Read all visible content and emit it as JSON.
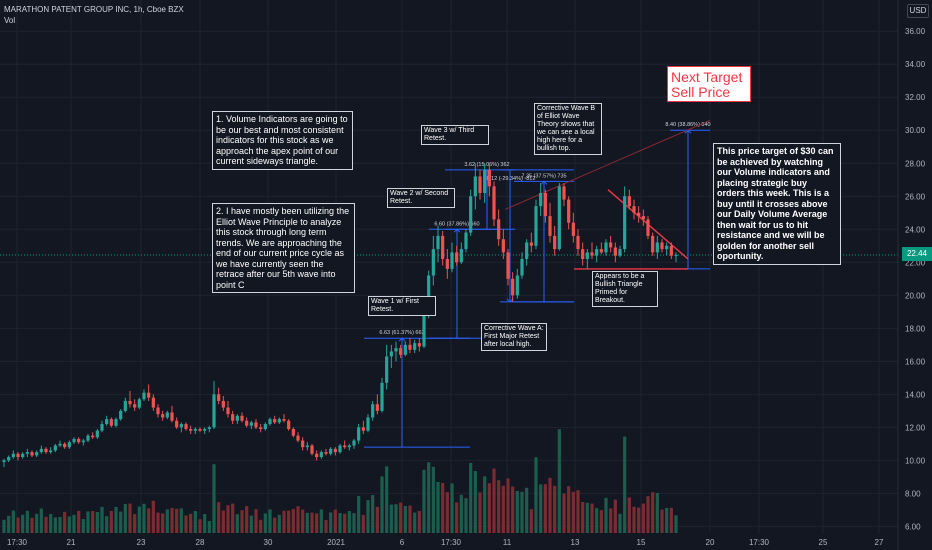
{
  "header": {
    "title": "MARATHON PATENT GROUP INC, 1h, Cboe BZX",
    "vol_label": "Vol"
  },
  "currency": "USD",
  "last_price": "22.44",
  "chart_data": {
    "type": "candlestick",
    "y_ticks": [
      "6.00",
      "8.00",
      "10.00",
      "12.00",
      "14.00",
      "16.00",
      "18.00",
      "20.00",
      "22.00",
      "24.00",
      "26.00",
      "28.00",
      "30.00",
      "32.00",
      "34.00",
      "36.00"
    ],
    "ylim": [
      5.6,
      36.8
    ],
    "x_ticks": [
      "17:30",
      "21",
      "23",
      "28",
      "30",
      "2021",
      "6",
      "17:30",
      "11",
      "13",
      "15",
      "20",
      "17:30",
      "25",
      "27"
    ],
    "colors": {
      "up": "#26a69a",
      "down": "#ef5350",
      "vol_up": "#1b5e4d",
      "vol_down": "#7a2c31",
      "measure": "#2962ff",
      "trend": "#f23645"
    },
    "ohlc": [
      [
        9.9,
        10.1,
        9.6,
        10.0
      ],
      [
        10.0,
        10.3,
        9.9,
        10.2
      ],
      [
        10.2,
        10.6,
        10.1,
        10.4
      ],
      [
        10.4,
        10.5,
        10.0,
        10.2
      ],
      [
        10.2,
        10.5,
        10.1,
        10.4
      ],
      [
        10.4,
        10.7,
        10.2,
        10.5
      ],
      [
        10.5,
        10.6,
        10.2,
        10.3
      ],
      [
        10.3,
        10.6,
        10.2,
        10.5
      ],
      [
        10.5,
        10.9,
        10.4,
        10.7
      ],
      [
        10.7,
        10.8,
        10.4,
        10.5
      ],
      [
        10.5,
        10.8,
        10.4,
        10.6
      ],
      [
        10.6,
        11.0,
        10.5,
        10.9
      ],
      [
        10.9,
        11.2,
        10.8,
        11.0
      ],
      [
        11.0,
        11.1,
        10.7,
        10.8
      ],
      [
        10.8,
        11.2,
        10.7,
        11.1
      ],
      [
        11.1,
        11.4,
        11.0,
        11.3
      ],
      [
        11.3,
        11.4,
        11.0,
        11.1
      ],
      [
        11.1,
        11.3,
        10.9,
        11.2
      ],
      [
        11.2,
        11.6,
        11.1,
        11.5
      ],
      [
        11.5,
        11.7,
        11.3,
        11.4
      ],
      [
        11.4,
        11.9,
        11.3,
        11.8
      ],
      [
        11.8,
        12.4,
        11.7,
        12.2
      ],
      [
        12.2,
        12.7,
        12.1,
        12.5
      ],
      [
        12.5,
        12.6,
        12.0,
        12.1
      ],
      [
        12.1,
        12.6,
        12.0,
        12.5
      ],
      [
        12.5,
        13.1,
        12.4,
        13.0
      ],
      [
        13.0,
        13.8,
        12.9,
        13.6
      ],
      [
        13.6,
        14.2,
        13.2,
        13.4
      ],
      [
        13.4,
        13.7,
        13.0,
        13.2
      ],
      [
        13.2,
        13.8,
        13.1,
        13.7
      ],
      [
        13.7,
        14.3,
        13.6,
        14.1
      ],
      [
        14.1,
        14.6,
        13.6,
        13.8
      ],
      [
        13.8,
        14.0,
        13.0,
        13.2
      ],
      [
        13.2,
        13.4,
        12.6,
        12.8
      ],
      [
        12.8,
        13.0,
        12.4,
        12.6
      ],
      [
        12.6,
        13.0,
        12.5,
        12.9
      ],
      [
        12.9,
        13.3,
        12.3,
        12.4
      ],
      [
        12.4,
        12.6,
        11.9,
        12.0
      ],
      [
        12.0,
        12.3,
        11.7,
        12.2
      ],
      [
        12.2,
        12.3,
        11.8,
        11.9
      ],
      [
        11.9,
        12.1,
        11.6,
        11.8
      ],
      [
        11.8,
        12.0,
        11.6,
        11.9
      ],
      [
        11.9,
        12.0,
        11.7,
        11.8
      ],
      [
        11.8,
        12.0,
        11.6,
        11.9
      ],
      [
        11.9,
        12.1,
        11.7,
        12.0
      ],
      [
        12.0,
        14.8,
        11.9,
        14.0
      ],
      [
        14.0,
        14.4,
        13.4,
        13.6
      ],
      [
        13.6,
        13.9,
        13.0,
        13.2
      ],
      [
        13.2,
        13.6,
        12.6,
        12.8
      ],
      [
        12.8,
        13.0,
        12.2,
        12.4
      ],
      [
        12.4,
        12.8,
        12.2,
        12.7
      ],
      [
        12.7,
        12.9,
        12.3,
        12.4
      ],
      [
        12.4,
        12.6,
        12.0,
        12.1
      ],
      [
        12.1,
        12.4,
        11.9,
        12.3
      ],
      [
        12.3,
        12.5,
        11.9,
        12.0
      ],
      [
        12.0,
        12.2,
        11.7,
        11.9
      ],
      [
        11.9,
        12.3,
        11.8,
        12.2
      ],
      [
        12.2,
        12.6,
        12.1,
        12.5
      ],
      [
        12.5,
        12.7,
        12.2,
        12.3
      ],
      [
        12.3,
        12.6,
        12.2,
        12.5
      ],
      [
        12.5,
        12.8,
        12.3,
        12.4
      ],
      [
        12.4,
        12.5,
        11.8,
        11.9
      ],
      [
        11.9,
        12.0,
        11.4,
        11.5
      ],
      [
        11.5,
        11.7,
        11.1,
        11.2
      ],
      [
        11.2,
        11.4,
        10.6,
        10.8
      ],
      [
        10.8,
        11.1,
        10.6,
        10.9
      ],
      [
        10.9,
        11.0,
        10.3,
        10.4
      ],
      [
        10.4,
        10.6,
        10.0,
        10.2
      ],
      [
        10.2,
        10.6,
        10.1,
        10.5
      ],
      [
        10.5,
        10.7,
        10.3,
        10.4
      ],
      [
        10.4,
        10.8,
        10.3,
        10.7
      ],
      [
        10.7,
        10.8,
        10.3,
        10.5
      ],
      [
        10.5,
        11.0,
        10.4,
        10.9
      ],
      [
        10.9,
        11.2,
        10.7,
        10.8
      ],
      [
        10.8,
        11.0,
        10.6,
        10.9
      ],
      [
        10.9,
        11.3,
        10.7,
        11.2
      ],
      [
        11.2,
        12.2,
        11.0,
        12.0
      ],
      [
        12.0,
        12.4,
        11.6,
        11.8
      ],
      [
        11.8,
        12.8,
        11.7,
        12.6
      ],
      [
        12.6,
        13.6,
        12.4,
        13.4
      ],
      [
        13.4,
        14.0,
        12.8,
        13.0
      ],
      [
        13.0,
        15.0,
        12.9,
        14.7
      ],
      [
        14.7,
        17.0,
        14.3,
        16.3
      ],
      [
        16.3,
        17.0,
        15.6,
        16.6
      ],
      [
        16.6,
        17.2,
        16.0,
        16.8
      ],
      [
        16.8,
        17.0,
        16.2,
        16.4
      ],
      [
        16.4,
        17.2,
        16.3,
        17.0
      ],
      [
        17.0,
        17.4,
        16.5,
        16.7
      ],
      [
        16.7,
        17.3,
        16.5,
        17.1
      ],
      [
        17.1,
        17.4,
        16.6,
        16.9
      ],
      [
        16.9,
        19.0,
        16.8,
        18.8
      ],
      [
        18.8,
        21.5,
        18.6,
        21.2
      ],
      [
        21.2,
        23.6,
        20.6,
        22.8
      ],
      [
        22.8,
        24.2,
        22.0,
        23.6
      ],
      [
        23.6,
        23.9,
        21.8,
        22.2
      ],
      [
        22.2,
        22.8,
        21.0,
        21.6
      ],
      [
        21.6,
        23.2,
        21.4,
        22.6
      ],
      [
        22.6,
        23.0,
        21.8,
        22.0
      ],
      [
        22.0,
        23.2,
        21.9,
        22.8
      ],
      [
        22.8,
        24.0,
        22.6,
        23.8
      ],
      [
        23.8,
        26.4,
        23.6,
        26.0
      ],
      [
        26.0,
        28.0,
        25.2,
        27.2
      ],
      [
        27.2,
        27.6,
        25.8,
        26.2
      ],
      [
        26.2,
        28.0,
        25.6,
        27.6
      ],
      [
        27.6,
        27.9,
        26.0,
        26.6
      ],
      [
        26.6,
        26.9,
        24.2,
        24.6
      ],
      [
        24.6,
        25.2,
        23.0,
        23.4
      ],
      [
        23.4,
        24.0,
        22.2,
        22.6
      ],
      [
        22.6,
        22.8,
        20.6,
        21.0
      ],
      [
        21.0,
        21.4,
        19.6,
        20.0
      ],
      [
        20.0,
        21.6,
        19.8,
        21.2
      ],
      [
        21.2,
        22.6,
        21.0,
        22.2
      ],
      [
        22.2,
        23.4,
        21.8,
        23.2
      ],
      [
        23.2,
        23.8,
        22.6,
        23.0
      ],
      [
        23.0,
        25.8,
        22.8,
        25.4
      ],
      [
        25.4,
        26.8,
        24.8,
        26.2
      ],
      [
        26.2,
        26.4,
        24.4,
        24.8
      ],
      [
        24.8,
        25.6,
        23.2,
        23.6
      ],
      [
        23.6,
        24.2,
        22.4,
        22.8
      ],
      [
        22.8,
        26.8,
        22.7,
        26.6
      ],
      [
        26.6,
        26.8,
        25.4,
        25.8
      ],
      [
        25.8,
        26.0,
        24.0,
        24.4
      ],
      [
        24.4,
        25.0,
        23.2,
        23.6
      ],
      [
        23.6,
        24.0,
        22.4,
        22.8
      ],
      [
        22.8,
        23.2,
        21.8,
        22.2
      ],
      [
        22.2,
        22.8,
        21.6,
        22.6
      ],
      [
        22.6,
        23.2,
        22.2,
        22.4
      ],
      [
        22.4,
        23.0,
        22.0,
        22.8
      ],
      [
        22.8,
        23.2,
        22.5,
        22.6
      ],
      [
        22.6,
        23.4,
        22.4,
        23.2
      ],
      [
        23.2,
        23.6,
        22.6,
        22.9
      ],
      [
        22.9,
        23.2,
        22.0,
        22.4
      ],
      [
        22.4,
        23.0,
        22.3,
        22.8
      ],
      [
        22.8,
        26.6,
        22.6,
        26.0
      ],
      [
        26.0,
        26.4,
        25.2,
        25.4
      ],
      [
        25.4,
        25.8,
        24.6,
        25.0
      ],
      [
        25.0,
        25.4,
        24.4,
        24.8
      ],
      [
        24.8,
        25.2,
        24.2,
        24.6
      ],
      [
        24.6,
        24.8,
        23.4,
        23.6
      ],
      [
        23.6,
        23.8,
        22.4,
        22.6
      ],
      [
        22.6,
        23.6,
        22.2,
        23.2
      ],
      [
        23.2,
        23.4,
        22.6,
        22.8
      ],
      [
        22.8,
        23.2,
        22.4,
        23.0
      ],
      [
        23.0,
        23.2,
        22.2,
        22.4
      ],
      [
        22.4,
        22.6,
        22.0,
        22.44
      ]
    ],
    "annotations": [
      {
        "label": "6.63 (61.37%) 663"
      },
      {
        "label": "6.60 (37.86%) 660"
      },
      {
        "label": "3.62 (15.06%) 362"
      },
      {
        "label": "7.35 (37.57%) 735"
      },
      {
        "label": "-8.12 (-29.34%) -812"
      },
      {
        "label": "8.40 (38.86%) 840"
      }
    ]
  },
  "notes": {
    "n1": "1. Volume Indicators are going to be our best and most consistent indicators for this stock as we approach the apex point of our current sideways triangle.",
    "n2": "2. I have mostly been utilizing the Elliot Wave Principle to analyze this stock through long term trends. We are approaching the end of our current price cycle as we have currently seen the retrace after our 5th wave into point C",
    "wave1": "Wave 1 w/ First Retest.",
    "wave2": "Wave 2 w/ Second Retest.",
    "wave3": "Wave 3 w/ Third Retest.",
    "waveA": "Corrective Wave A: First Major Retest after local high.",
    "waveB": "Corrective Wave B of Elliot Wave Theory shows that we can see a local high here for a bullish top.",
    "triangle": "Appears to be a Bullish Triangle Primed for Breakout.",
    "target_title": "Next Target Sell Price",
    "target_text": "This price target of $30 can be achieved by watching our Volume indicators and placing strategic buy orders this week. This is a buy until it crosses above our Daily Volume Average then wait for us to hit resistance and we will be golden for another sell oportunity."
  }
}
